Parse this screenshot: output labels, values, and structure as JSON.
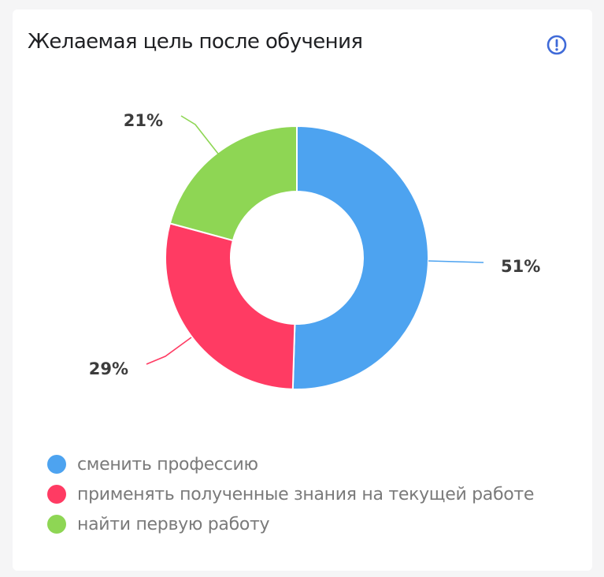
{
  "card": {
    "title": "Желаемая цель после обучения",
    "info_icon": "exclamation-circle-icon",
    "info_color": "#3f6ad8"
  },
  "chart_data": {
    "type": "pie",
    "variant": "donut",
    "title": "Желаемая цель после обучения",
    "categories": [
      "сменить профессию",
      "применять полученные знания на текущей работе",
      "найти первую работу"
    ],
    "values": [
      51,
      29,
      21
    ],
    "labels": [
      "51%",
      "29%",
      "21%"
    ],
    "colors": [
      "#4da3f0",
      "#ff3b63",
      "#8ed654"
    ],
    "legend_position": "bottom"
  }
}
